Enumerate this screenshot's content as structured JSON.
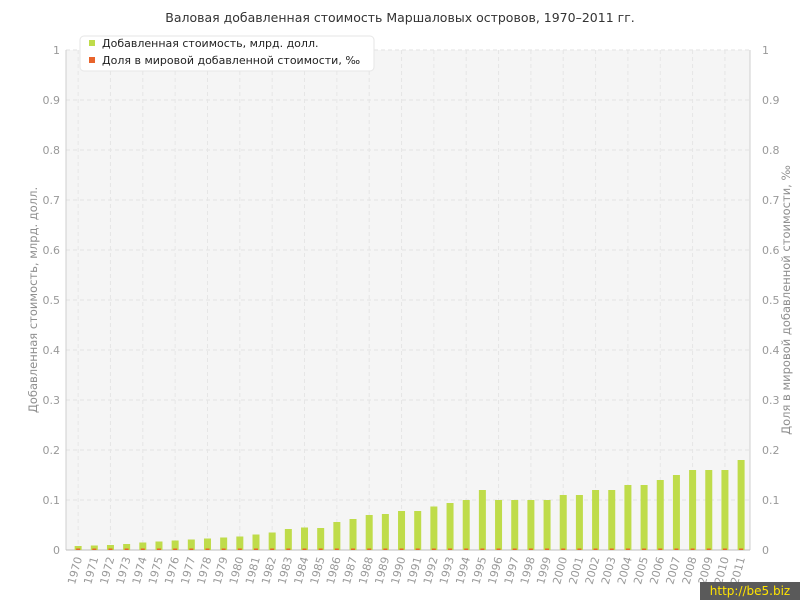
{
  "chart_data": {
    "type": "bar",
    "title": "Валовая добавленная стоимость Маршаловых островов, 1970–2011 гг.",
    "ylabel_left": "Добавленная стоимость, млрд. долл.",
    "ylabel_right": "Доля в мировой добавленной стоимости, ‰",
    "ylim": [
      0,
      1
    ],
    "y_ticks": [
      "0",
      "0.1",
      "0.2",
      "0.3",
      "0.4",
      "0.5",
      "0.6",
      "0.7",
      "0.8",
      "0.9",
      "1"
    ],
    "grid": true,
    "legend_position": "top-left",
    "categories": [
      "1970",
      "1971",
      "1972",
      "1973",
      "1974",
      "1975",
      "1976",
      "1977",
      "1978",
      "1979",
      "1980",
      "1981",
      "1982",
      "1983",
      "1984",
      "1985",
      "1986",
      "1987",
      "1988",
      "1989",
      "1990",
      "1991",
      "1992",
      "1993",
      "1994",
      "1995",
      "1996",
      "1997",
      "1998",
      "1999",
      "2000",
      "2001",
      "2002",
      "2003",
      "2004",
      "2005",
      "2006",
      "2007",
      "2008",
      "2009",
      "2010",
      "2011"
    ],
    "series": [
      {
        "name": "Добавленная стоимость, млрд. долл.",
        "color": "#bfdc4a",
        "values": [
          0.008,
          0.009,
          0.01,
          0.012,
          0.015,
          0.017,
          0.019,
          0.021,
          0.023,
          0.025,
          0.027,
          0.031,
          0.035,
          0.042,
          0.045,
          0.044,
          0.056,
          0.062,
          0.07,
          0.072,
          0.078,
          0.078,
          0.087,
          0.094,
          0.1,
          0.12,
          0.1,
          0.1,
          0.1,
          0.1,
          0.11,
          0.11,
          0.12,
          0.12,
          0.13,
          0.13,
          0.14,
          0.15,
          0.16,
          0.16,
          0.16,
          0.18
        ]
      },
      {
        "name": "Доля в мировой добавленной стоимости, ‰",
        "color": "#e8642c",
        "values": [
          0.003,
          0.003,
          0.003,
          0.003,
          0.003,
          0.003,
          0.003,
          0.003,
          0.003,
          0.003,
          0.003,
          0.003,
          0.003,
          0.003,
          0.003,
          0.003,
          0.003,
          0.003,
          0.003,
          0.003,
          0.003,
          0.003,
          0.003,
          0.003,
          0.003,
          0.003,
          0.003,
          0.003,
          0.003,
          0.003,
          0.003,
          0.003,
          0.003,
          0.003,
          0.003,
          0.003,
          0.003,
          0.003,
          0.003,
          0.003,
          0.003,
          0.003
        ]
      }
    ]
  },
  "watermark": "http://be5.biz"
}
